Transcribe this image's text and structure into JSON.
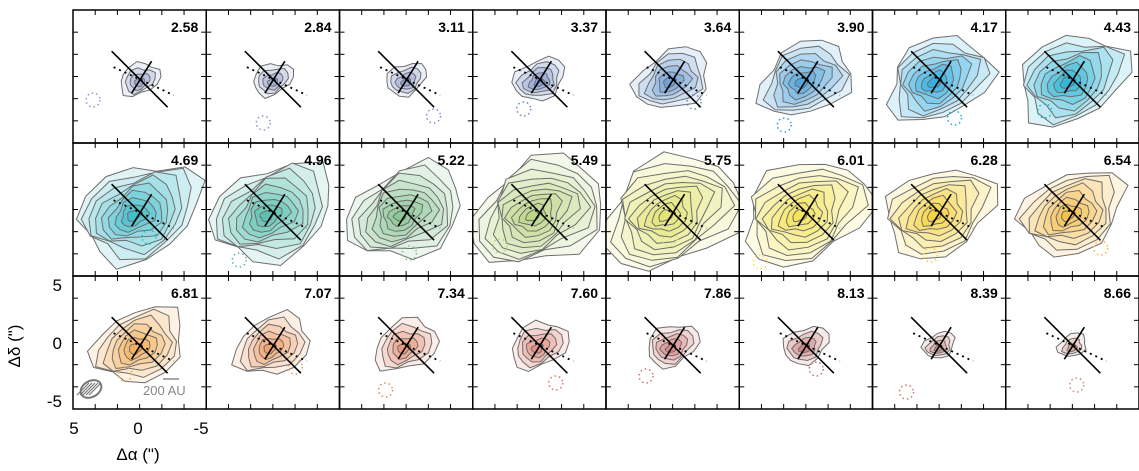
{
  "figure": {
    "panels": [
      {
        "velocity": "2.58",
        "color": "#8a97c8",
        "level": 0.15
      },
      {
        "velocity": "2.84",
        "color": "#8a97c8",
        "level": 0.15
      },
      {
        "velocity": "3.11",
        "color": "#7f8fc9",
        "level": 0.15
      },
      {
        "velocity": "3.37",
        "color": "#6f88c8",
        "level": 0.25
      },
      {
        "velocity": "3.64",
        "color": "#5b92d0",
        "level": 0.45
      },
      {
        "velocity": "3.90",
        "color": "#3e9ad8",
        "level": 0.6
      },
      {
        "velocity": "4.17",
        "color": "#1fa6de",
        "level": 0.7
      },
      {
        "velocity": "4.43",
        "color": "#18aed2",
        "level": 0.75
      },
      {
        "velocity": "4.69",
        "color": "#30b7c6",
        "level": 0.85
      },
      {
        "velocity": "4.96",
        "color": "#4bbbaa",
        "level": 0.85
      },
      {
        "velocity": "5.22",
        "color": "#7fc08c",
        "level": 0.8
      },
      {
        "velocity": "5.49",
        "color": "#b6d27a",
        "level": 0.95
      },
      {
        "velocity": "5.75",
        "color": "#e0e266",
        "level": 1.0
      },
      {
        "velocity": "6.01",
        "color": "#f2e14a",
        "level": 0.9
      },
      {
        "velocity": "6.28",
        "color": "#f7cf2e",
        "level": 0.75
      },
      {
        "velocity": "6.54",
        "color": "#f5b83a",
        "level": 0.7
      },
      {
        "velocity": "6.81",
        "color": "#f3a545",
        "level": 0.6
      },
      {
        "velocity": "7.07",
        "color": "#ee9356",
        "level": 0.45
      },
      {
        "velocity": "7.34",
        "color": "#e58565",
        "level": 0.35
      },
      {
        "velocity": "7.60",
        "color": "#dd7a6c",
        "level": 0.3
      },
      {
        "velocity": "7.86",
        "color": "#d26e6e",
        "level": 0.25
      },
      {
        "velocity": "8.13",
        "color": "#c66b6b",
        "level": 0.2
      },
      {
        "velocity": "8.39",
        "color": "#c77c72",
        "level": 0.08
      },
      {
        "velocity": "8.66",
        "color": "#c98a80",
        "level": 0.05
      }
    ],
    "y_axis": {
      "label": "Δδ (\")",
      "ticks": [
        "5",
        "0",
        "-5"
      ]
    },
    "x_axis": {
      "label": "Δα (\")",
      "ticks": [
        "5",
        "0",
        "-5"
      ]
    },
    "scale_bar": {
      "text": "200 AU"
    },
    "beam": {
      "present": true
    }
  }
}
